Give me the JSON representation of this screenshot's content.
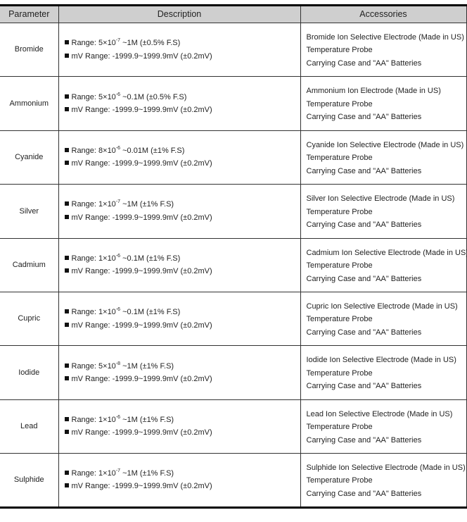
{
  "headers": [
    "Parameter",
    "Description",
    "Accessories"
  ],
  "rows": [
    {
      "parameter": "Bromide",
      "range_prefix": "Range: 5×10",
      "range_exp": "-7",
      "range_suffix": " ~1M (±0.5% F.S)",
      "mv_range": "mV Range: -1999.9~1999.9mV (±0.2mV)",
      "accessories": [
        "Bromide Ion Selective Electrode (Made in US)",
        "Temperature Probe",
        "Carrying Case and \"AA\" Batteries"
      ]
    },
    {
      "parameter": "Ammonium",
      "range_prefix": "Range: 5×10",
      "range_exp": "-6",
      "range_suffix": " ~0.1M (±0.5% F.S)",
      "mv_range": "mV Range: -1999.9~1999.9mV (±0.2mV)",
      "accessories": [
        "Ammonium Ion Electrode (Made in US)",
        "Temperature Probe",
        "Carrying Case and \"AA\" Batteries"
      ]
    },
    {
      "parameter": "Cyanide",
      "range_prefix": "Range: 8×10",
      "range_exp": "-6",
      "range_suffix": " ~0.01M (±1% F.S)",
      "mv_range": "mV Range: -1999.9~1999.9mV (±0.2mV)",
      "accessories": [
        "Cyanide Ion Selective Electrode (Made in US)",
        "Temperature Probe",
        "Carrying Case and \"AA\" Batteries"
      ]
    },
    {
      "parameter": "Silver",
      "range_prefix": "Range: 1×10",
      "range_exp": "-7",
      "range_suffix": " ~1M (±1% F.S)",
      "mv_range": "mV Range: -1999.9~1999.9mV (±0.2mV)",
      "accessories": [
        "Silver Ion Selective Electrode (Made in US)",
        "Temperature Probe",
        "Carrying Case and \"AA\" Batteries"
      ]
    },
    {
      "parameter": "Cadmium",
      "range_prefix": "Range: 1×10",
      "range_exp": "-6",
      "range_suffix": " ~0.1M (±1% F.S)",
      "mv_range": "mV Range: -1999.9~1999.9mV (±0.2mV)",
      "accessories": [
        "Cadmium Ion Selective Electrode (Made in US)",
        "Temperature Probe",
        "Carrying Case and \"AA\" Batteries"
      ]
    },
    {
      "parameter": "Cupric",
      "range_prefix": "Range: 1×10",
      "range_exp": "-6",
      "range_suffix": " ~0.1M (±1% F.S)",
      "mv_range": "mV Range: -1999.9~1999.9mV (±0.2mV)",
      "accessories": [
        "Cupric Ion Selective Electrode (Made in US)",
        "Temperature Probe",
        "Carrying Case and \"AA\" Batteries"
      ]
    },
    {
      "parameter": "Iodide",
      "range_prefix": "Range: 5×10",
      "range_exp": "-8",
      "range_suffix": " ~1M (±1% F.S)",
      "mv_range": "mV Range: -1999.9~1999.9mV (±0.2mV)",
      "accessories": [
        "Iodide Ion Selective Electrode (Made in US)",
        "Temperature Probe",
        "Carrying Case and \"AA\" Batteries"
      ]
    },
    {
      "parameter": "Lead",
      "range_prefix": "Range: 1×10",
      "range_exp": "-6",
      "range_suffix": " ~1M (±1% F.S)",
      "mv_range": "mV Range: -1999.9~1999.9mV (±0.2mV)",
      "accessories": [
        "Lead Ion Selective Electrode (Made in US)",
        "Temperature Probe",
        "Carrying Case and \"AA\" Batteries"
      ]
    },
    {
      "parameter": "Sulphide",
      "range_prefix": "Range: 1×10",
      "range_exp": "-7",
      "range_suffix": " ~1M (±1% F.S)",
      "mv_range": "mV Range: -1999.9~1999.9mV (±0.2mV)",
      "accessories": [
        "Sulphide Ion Selective Electrode (Made in US)",
        "Temperature Probe",
        "Carrying Case and \"AA\" Batteries"
      ]
    }
  ]
}
